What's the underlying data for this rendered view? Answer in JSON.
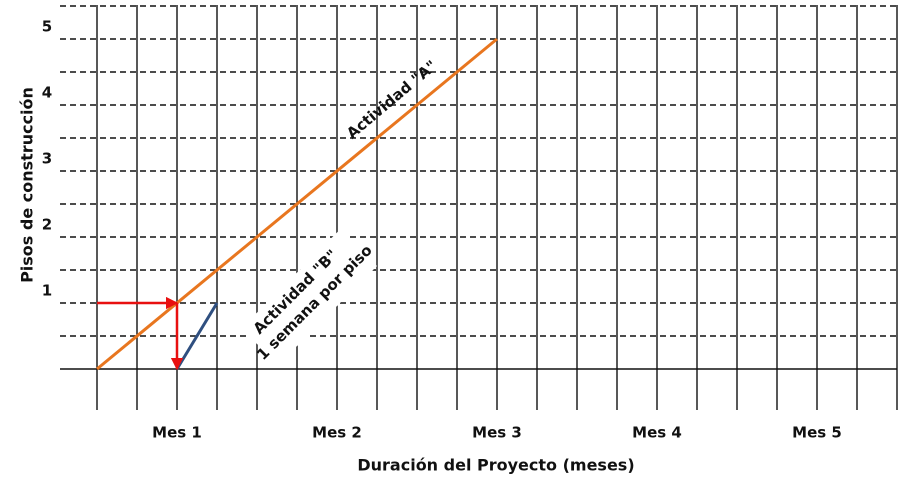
{
  "chart_data": {
    "type": "line",
    "x_label": "Duración del Proyecto (meses)",
    "y_label": "Pisos de construcción",
    "xlim": [
      0,
      20
    ],
    "ylim": [
      0,
      5.5
    ],
    "xticks": [
      {
        "value": 2,
        "label": "Mes 1"
      },
      {
        "value": 6,
        "label": "Mes 2"
      },
      {
        "value": 10,
        "label": "Mes 3"
      },
      {
        "value": 14,
        "label": "Mes 4"
      },
      {
        "value": 18,
        "label": "Mes 5"
      }
    ],
    "yticks": [
      1,
      2,
      3,
      4,
      5
    ],
    "grid": true,
    "series": [
      {
        "name": "Actividad \"A\"",
        "color": "#e8761f",
        "x": [
          0,
          10
        ],
        "values": [
          0,
          5
        ]
      },
      {
        "name": "Actividad \"B\"",
        "color": "#2f4f80",
        "x": [
          2,
          3
        ],
        "values": [
          0,
          1
        ]
      }
    ],
    "annotation": "1 semana por piso",
    "arrows": [
      {
        "color": "#e81010",
        "x": [
          0,
          2
        ],
        "values": [
          1,
          1
        ]
      },
      {
        "color": "#e81010",
        "x": [
          2,
          2
        ],
        "values": [
          1,
          0
        ]
      }
    ]
  }
}
